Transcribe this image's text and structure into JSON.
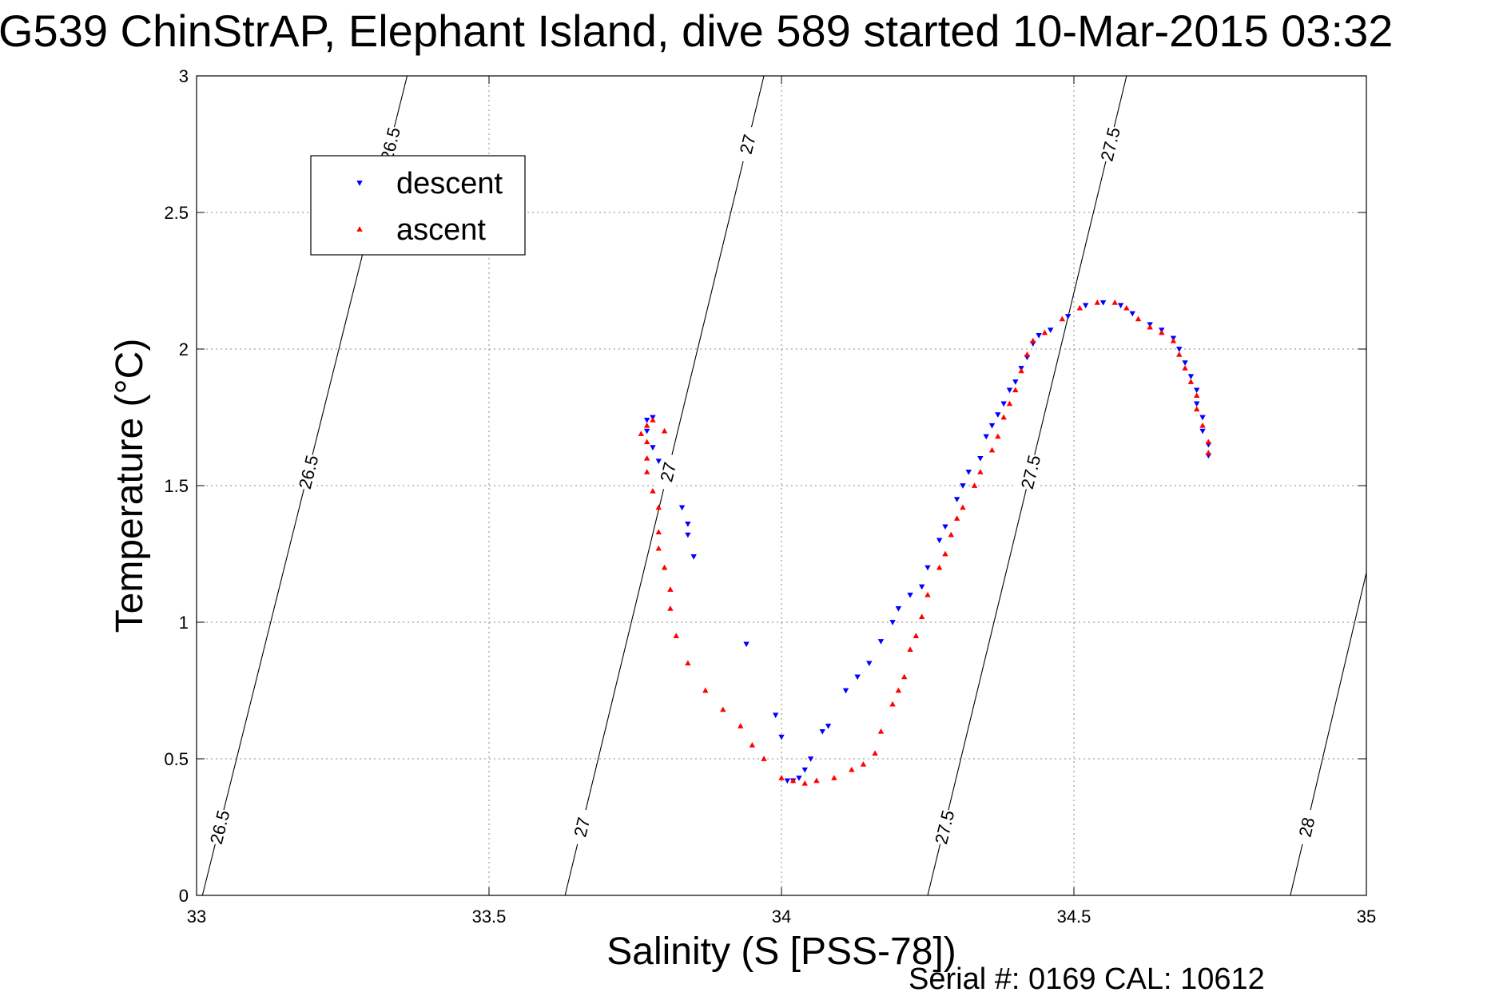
{
  "chart_data": {
    "type": "scatter",
    "title": "G539 ChinStrAP, Elephant Island, dive 589 started 10-Mar-2015 03:32",
    "xlabel": "Salinity (S [PSS-78])",
    "ylabel": "Temperature (°C)",
    "xlim": [
      33,
      35
    ],
    "ylim": [
      0,
      3
    ],
    "x_ticks": [
      "33",
      "33.5",
      "34",
      "34.5",
      "35"
    ],
    "y_ticks": [
      "0",
      "0.5",
      "1",
      "1.5",
      "2",
      "2.5",
      "3"
    ],
    "grid": true,
    "legend_position": "top-left",
    "footer": "Serial #: 0169 CAL: 10612",
    "density_contours": [
      {
        "value": "26.5",
        "x_at_t0": 33.01,
        "x_at_t3": 33.36
      },
      {
        "value": "27",
        "x_at_t0": 33.63,
        "x_at_t3": 33.97
      },
      {
        "value": "27.5",
        "x_at_t0": 34.25,
        "x_at_t3": 34.59
      },
      {
        "value": "28",
        "x_at_t0": 34.87,
        "x_at_t3": 35.2
      }
    ],
    "series": [
      {
        "name": "descent",
        "color": "#0000ff",
        "marker": "triangle-down",
        "points": [
          [
            34.73,
            1.61
          ],
          [
            34.73,
            1.65
          ],
          [
            34.72,
            1.7
          ],
          [
            34.72,
            1.75
          ],
          [
            34.71,
            1.8
          ],
          [
            34.71,
            1.85
          ],
          [
            34.7,
            1.9
          ],
          [
            34.69,
            1.95
          ],
          [
            34.68,
            2.0
          ],
          [
            34.67,
            2.04
          ],
          [
            34.65,
            2.07
          ],
          [
            34.63,
            2.09
          ],
          [
            34.6,
            2.13
          ],
          [
            34.58,
            2.16
          ],
          [
            34.55,
            2.17
          ],
          [
            34.52,
            2.16
          ],
          [
            34.49,
            2.12
          ],
          [
            34.46,
            2.07
          ],
          [
            34.44,
            2.05
          ],
          [
            34.43,
            2.02
          ],
          [
            34.42,
            1.97
          ],
          [
            34.41,
            1.93
          ],
          [
            34.4,
            1.88
          ],
          [
            34.39,
            1.85
          ],
          [
            34.38,
            1.8
          ],
          [
            34.37,
            1.76
          ],
          [
            34.36,
            1.72
          ],
          [
            34.35,
            1.68
          ],
          [
            34.34,
            1.6
          ],
          [
            34.32,
            1.55
          ],
          [
            34.31,
            1.5
          ],
          [
            34.3,
            1.45
          ],
          [
            34.28,
            1.35
          ],
          [
            34.27,
            1.3
          ],
          [
            34.25,
            1.2
          ],
          [
            34.24,
            1.13
          ],
          [
            34.22,
            1.1
          ],
          [
            34.2,
            1.05
          ],
          [
            34.19,
            1.0
          ],
          [
            34.17,
            0.93
          ],
          [
            34.15,
            0.85
          ],
          [
            34.13,
            0.8
          ],
          [
            34.11,
            0.75
          ],
          [
            34.08,
            0.62
          ],
          [
            34.07,
            0.6
          ],
          [
            34.05,
            0.5
          ],
          [
            34.04,
            0.46
          ],
          [
            34.03,
            0.43
          ],
          [
            34.02,
            0.42
          ],
          [
            34.01,
            0.42
          ],
          [
            34.0,
            0.58
          ],
          [
            33.99,
            0.66
          ],
          [
            33.94,
            0.92
          ],
          [
            33.85,
            1.24
          ],
          [
            33.84,
            1.32
          ],
          [
            33.84,
            1.36
          ],
          [
            33.83,
            1.42
          ],
          [
            33.79,
            1.59
          ],
          [
            33.78,
            1.64
          ],
          [
            33.77,
            1.7
          ],
          [
            33.77,
            1.74
          ],
          [
            33.78,
            1.75
          ]
        ]
      },
      {
        "name": "ascent",
        "color": "#ff0000",
        "marker": "triangle-up",
        "points": [
          [
            34.73,
            1.62
          ],
          [
            34.73,
            1.66
          ],
          [
            34.72,
            1.72
          ],
          [
            34.71,
            1.78
          ],
          [
            34.71,
            1.83
          ],
          [
            34.7,
            1.88
          ],
          [
            34.69,
            1.93
          ],
          [
            34.68,
            1.98
          ],
          [
            34.67,
            2.03
          ],
          [
            34.65,
            2.06
          ],
          [
            34.63,
            2.08
          ],
          [
            34.61,
            2.11
          ],
          [
            34.59,
            2.15
          ],
          [
            34.57,
            2.17
          ],
          [
            34.54,
            2.17
          ],
          [
            34.51,
            2.15
          ],
          [
            34.48,
            2.11
          ],
          [
            34.45,
            2.06
          ],
          [
            34.43,
            2.03
          ],
          [
            34.42,
            1.98
          ],
          [
            34.41,
            1.92
          ],
          [
            34.4,
            1.85
          ],
          [
            34.39,
            1.8
          ],
          [
            34.38,
            1.75
          ],
          [
            34.37,
            1.68
          ],
          [
            34.36,
            1.63
          ],
          [
            34.34,
            1.55
          ],
          [
            34.33,
            1.5
          ],
          [
            34.31,
            1.42
          ],
          [
            34.3,
            1.38
          ],
          [
            34.29,
            1.32
          ],
          [
            34.28,
            1.25
          ],
          [
            34.27,
            1.2
          ],
          [
            34.25,
            1.1
          ],
          [
            34.24,
            1.02
          ],
          [
            34.23,
            0.95
          ],
          [
            34.22,
            0.9
          ],
          [
            34.21,
            0.8
          ],
          [
            34.2,
            0.75
          ],
          [
            34.19,
            0.7
          ],
          [
            34.17,
            0.6
          ],
          [
            34.16,
            0.52
          ],
          [
            34.14,
            0.48
          ],
          [
            34.12,
            0.46
          ],
          [
            34.09,
            0.43
          ],
          [
            34.06,
            0.42
          ],
          [
            34.04,
            0.41
          ],
          [
            34.02,
            0.42
          ],
          [
            34.0,
            0.43
          ],
          [
            33.97,
            0.5
          ],
          [
            33.95,
            0.55
          ],
          [
            33.93,
            0.62
          ],
          [
            33.9,
            0.68
          ],
          [
            33.87,
            0.75
          ],
          [
            33.84,
            0.85
          ],
          [
            33.82,
            0.95
          ],
          [
            33.81,
            1.05
          ],
          [
            33.81,
            1.12
          ],
          [
            33.8,
            1.2
          ],
          [
            33.79,
            1.27
          ],
          [
            33.79,
            1.33
          ],
          [
            33.79,
            1.42
          ],
          [
            33.78,
            1.48
          ],
          [
            33.77,
            1.55
          ],
          [
            33.77,
            1.6
          ],
          [
            33.77,
            1.66
          ],
          [
            33.76,
            1.69
          ],
          [
            33.77,
            1.72
          ],
          [
            33.78,
            1.74
          ],
          [
            33.8,
            1.7
          ]
        ]
      }
    ]
  }
}
